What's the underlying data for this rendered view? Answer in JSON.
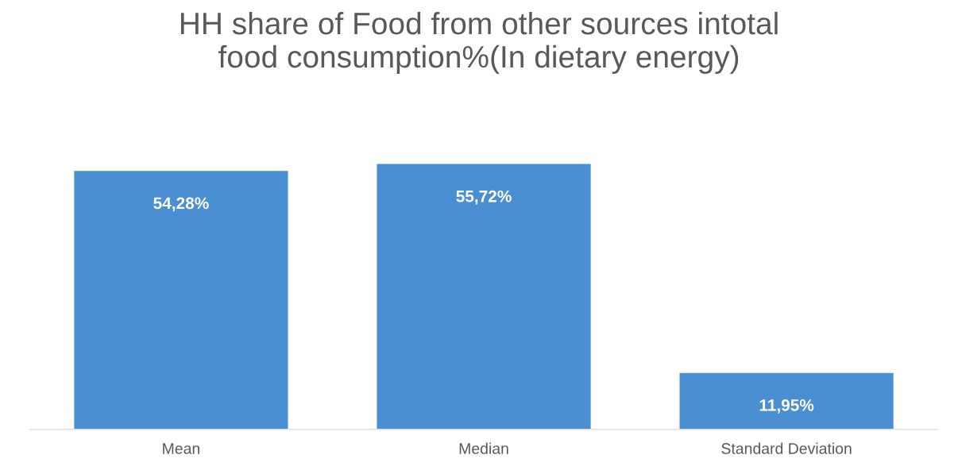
{
  "chart_data": {
    "type": "bar",
    "title": "HH share of Food from other sources intotal\nfood consumption%(In dietary energy)",
    "categories": [
      "Mean",
      "Median",
      "Standard Deviation"
    ],
    "values": [
      54.28,
      55.72,
      11.95
    ],
    "value_labels": [
      "54,28%",
      "55,72%",
      "11,95%"
    ],
    "color": "#4a8fd2"
  }
}
